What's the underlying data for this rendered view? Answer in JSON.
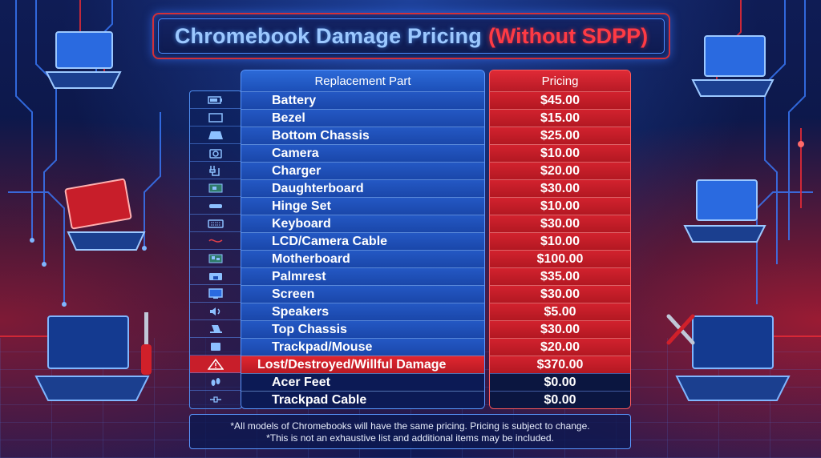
{
  "title": {
    "main": "Chromebook Damage Pricing",
    "sub": "(Without SDPP)"
  },
  "table": {
    "headers": {
      "part": "Replacement Part",
      "price": "Pricing"
    },
    "rows": [
      {
        "part": "Battery",
        "price": "$45.00",
        "icon": "battery-icon"
      },
      {
        "part": "Bezel",
        "price": "$15.00",
        "icon": "bezel-icon"
      },
      {
        "part": "Bottom Chassis",
        "price": "$25.00",
        "icon": "chassis-icon"
      },
      {
        "part": "Camera",
        "price": "$10.00",
        "icon": "camera-icon"
      },
      {
        "part": "Charger",
        "price": "$20.00",
        "icon": "charger-icon"
      },
      {
        "part": "Daughterboard",
        "price": "$30.00",
        "icon": "circuit-board-icon"
      },
      {
        "part": "Hinge Set",
        "price": "$10.00",
        "icon": "hinge-icon"
      },
      {
        "part": "Keyboard",
        "price": "$30.00",
        "icon": "keyboard-icon"
      },
      {
        "part": "LCD/Camera Cable",
        "price": "$10.00",
        "icon": "cable-icon"
      },
      {
        "part": "Motherboard",
        "price": "$100.00",
        "icon": "motherboard-icon"
      },
      {
        "part": "Palmrest",
        "price": "$35.00",
        "icon": "palmrest-icon"
      },
      {
        "part": "Screen",
        "price": "$30.00",
        "icon": "screen-icon"
      },
      {
        "part": "Speakers",
        "price": "$5.00",
        "icon": "speaker-icon"
      },
      {
        "part": "Top Chassis",
        "price": "$30.00",
        "icon": "laptop-icon"
      },
      {
        "part": "Trackpad/Mouse",
        "price": "$20.00",
        "icon": "trackpad-icon"
      },
      {
        "part": "Lost/Destroyed/Willful Damage",
        "price": "$370.00",
        "icon": "warning-icon"
      },
      {
        "part": "Acer Feet",
        "price": "$0.00",
        "icon": "feet-icon"
      },
      {
        "part": "Trackpad Cable",
        "price": "$0.00",
        "icon": "trackpad-cable-icon"
      }
    ]
  },
  "footer": {
    "line1": "*All models of Chromebooks will have the same pricing. Pricing is subject to change.",
    "line2": "*This is not an exhaustive list and additional items may be included."
  },
  "colors": {
    "accent_blue": "#1d4eb4",
    "accent_red": "#c21c28",
    "title_blue": "#9cc8ff",
    "title_red": "#ff3a44"
  }
}
